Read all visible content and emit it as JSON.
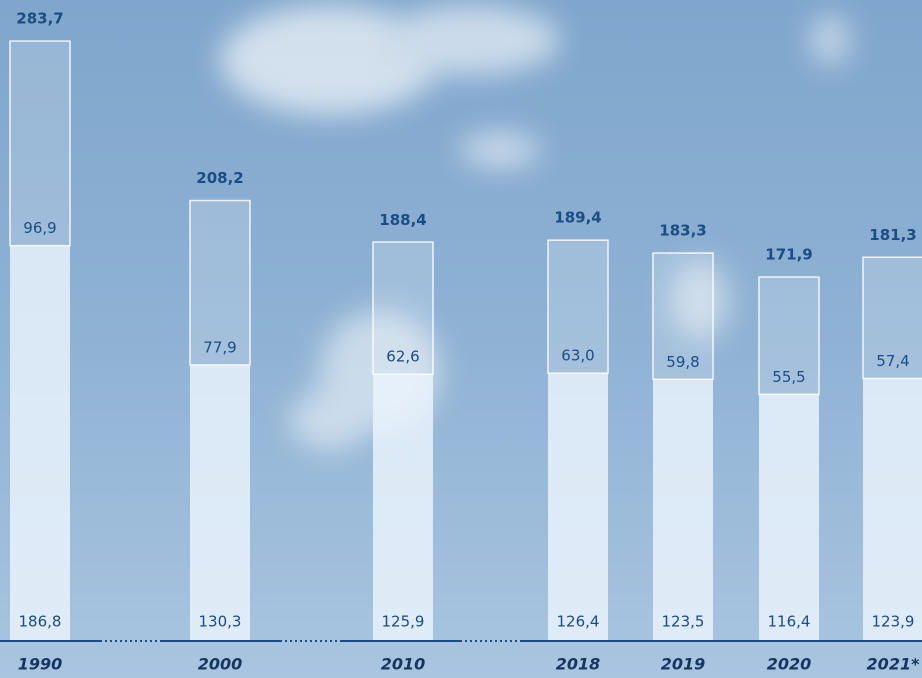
{
  "chart_data": {
    "type": "stacked_bar",
    "categories": [
      "1990",
      "2000",
      "2010",
      "2018",
      "2019",
      "2020",
      "2021*"
    ],
    "series": [
      {
        "color": "rgba(235,244,252,0.82)",
        "values": [
          186.8,
          130.3,
          125.9,
          126.4,
          123.5,
          116.4,
          123.9
        ],
        "value_labels": [
          "186,8",
          "130,3",
          "125,9",
          "126,4",
          "123,5",
          "116,4",
          "123,9"
        ]
      },
      {
        "color": "rgba(255,255,255,0.18)",
        "values": [
          96.9,
          77.9,
          62.6,
          63.0,
          59.8,
          55.5,
          57.4
        ],
        "value_labels": [
          "96,9",
          "77,9",
          "62,6",
          "63,0",
          "59,8",
          "55,5",
          "57,4"
        ]
      }
    ],
    "totals": [
      283.7,
      208.2,
      188.4,
      189.4,
      183.3,
      171.9,
      181.3
    ],
    "total_labels": [
      "283,7",
      "208,2",
      "188,4",
      "189,4",
      "183,3",
      "171,9",
      "181,3"
    ],
    "ylim": [
      0,
      300
    ]
  }
}
